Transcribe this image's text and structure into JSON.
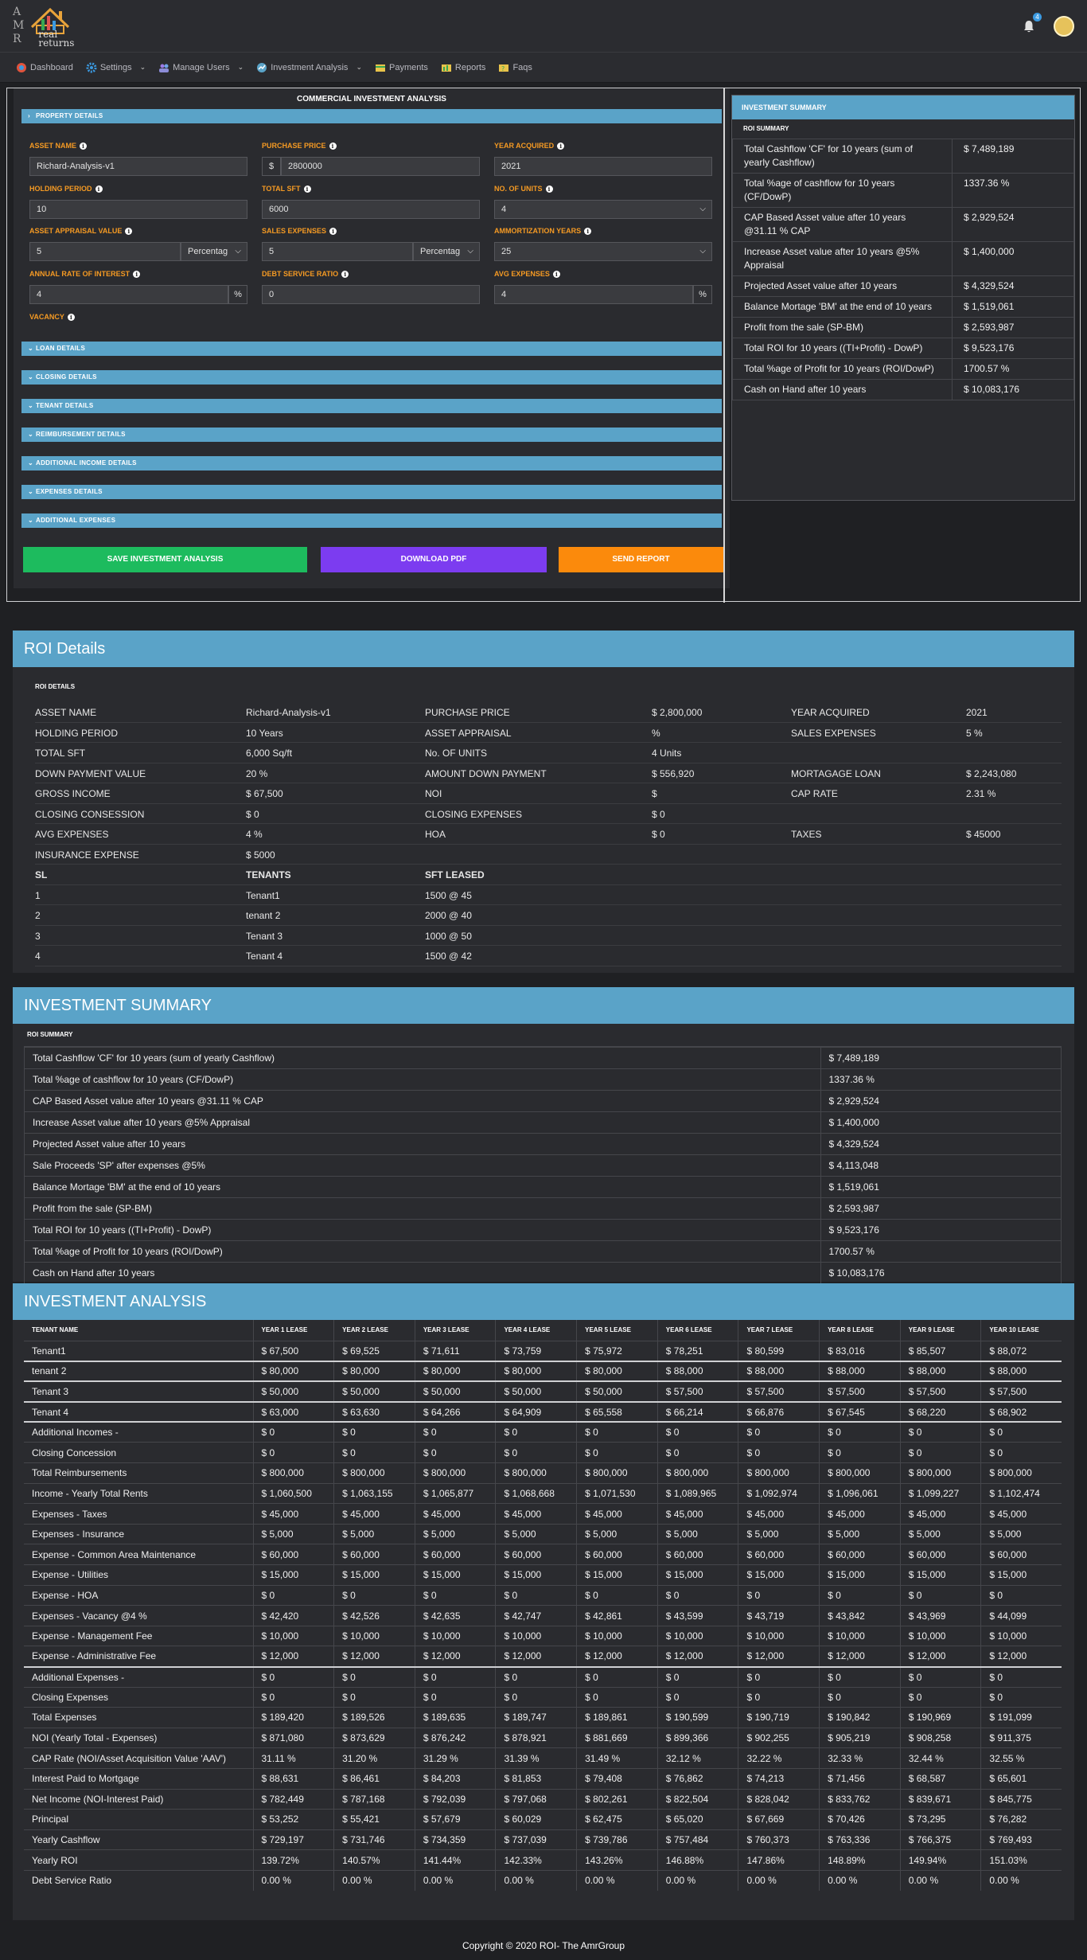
{
  "brand": {
    "letters": [
      "A",
      "M",
      "R"
    ],
    "name_line1": "real",
    "name_line2": "returns"
  },
  "notifications": {
    "count": "4"
  },
  "nav": [
    {
      "label": "Dashboard",
      "icon": "dashboard-icon",
      "dropdown": false
    },
    {
      "label": "Settings",
      "icon": "gear-icon",
      "dropdown": true
    },
    {
      "label": "Manage Users",
      "icon": "users-icon",
      "dropdown": true
    },
    {
      "label": "Investment Analysis",
      "icon": "analysis-icon",
      "dropdown": true
    },
    {
      "label": "Payments",
      "icon": "payments-icon",
      "dropdown": false
    },
    {
      "label": "Reports",
      "icon": "reports-icon",
      "dropdown": false
    },
    {
      "label": "Faqs",
      "icon": "faqs-icon",
      "dropdown": false
    }
  ],
  "form": {
    "title": "COMMERCIAL INVESTMENT ANALYSIS",
    "property_details": "PROPERTY DETAILS",
    "asset_name": {
      "label": "ASSET NAME",
      "value": "Richard-Analysis-v1"
    },
    "purchase_price": {
      "label": "PURCHASE PRICE",
      "prefix": "$",
      "value": "2800000"
    },
    "year_acquired": {
      "label": "YEAR ACQUIRED",
      "value": "2021"
    },
    "holding_period": {
      "label": "HOLDING PERIOD",
      "value": "10"
    },
    "total_sft": {
      "label": "TOTAL SFT",
      "value": "6000"
    },
    "no_of_units": {
      "label": "NO. OF UNITS",
      "value": "4"
    },
    "asset_appraisal": {
      "label": "ASSET APPRAISAL VALUE",
      "value": "5",
      "unit": "Percentag"
    },
    "sales_expenses": {
      "label": "SALES EXPENSES",
      "value": "5",
      "unit": "Percentag"
    },
    "amortization": {
      "label": "AMMORTIZATION YEARS",
      "value": "25"
    },
    "interest_rate": {
      "label": "ANNUAL RATE OF INTEREST",
      "value": "4",
      "suffix": "%"
    },
    "debt_service": {
      "label": "DEBT SERVICE RATIO",
      "value": "0"
    },
    "avg_expenses": {
      "label": "AVG EXPENSES",
      "value": "4",
      "suffix": "%"
    },
    "vacancy": {
      "label": "VACANCY"
    },
    "sections": [
      "LOAN DETAILS",
      "CLOSING DETAILS",
      "TENANT DETAILS",
      "REIMBURSEMENT DETAILS",
      "ADDITIONAL INCOME DETAILS",
      "EXPENSES DETAILS",
      "ADDITIONAL EXPENSES"
    ],
    "buttons": {
      "save": "SAVE INVESTMENT ANALYSIS",
      "pdf": "DOWNLOAD PDF",
      "report": "SEND REPORT"
    }
  },
  "side_summary": {
    "header": "INVESTMENT SUMMARY",
    "sub": "ROI SUMMARY",
    "rows": [
      {
        "k": "Total Cashflow 'CF' for 10 years (sum of yearly Cashflow)",
        "v": "$ 7,489,189"
      },
      {
        "k": "Total %age of cashflow for 10 years (CF/DowP)",
        "v": "1337.36 %"
      },
      {
        "k": "CAP Based Asset value after 10 years @31.11 % CAP",
        "v": "$ 2,929,524"
      },
      {
        "k": "Increase Asset value after 10 years @5% Appraisal",
        "v": "$ 1,400,000"
      },
      {
        "k": "Projected Asset value after 10 years",
        "v": "$ 4,329,524"
      },
      {
        "k": "Balance Mortage 'BM' at the end of 10 years",
        "v": "$ 1,519,061"
      },
      {
        "k": "Profit from the sale (SP-BM)",
        "v": "$ 2,593,987"
      },
      {
        "k": "Total ROI for 10 years ((TI+Profit) - DowP)",
        "v": "$ 9,523,176"
      },
      {
        "k": "Total %age of Profit for 10 years (ROI/DowP)",
        "v": "1700.57 %"
      },
      {
        "k": "Cash on Hand after 10 years",
        "v": "$ 10,083,176"
      }
    ]
  },
  "roi_details": {
    "title": "ROI Details",
    "sub": "ROI DETAILS",
    "rows": [
      [
        "ASSET NAME",
        "Richard-Analysis-v1",
        "PURCHASE PRICE",
        "$ 2,800,000",
        "YEAR ACQUIRED",
        "2021"
      ],
      [
        "HOLDING PERIOD",
        "10 Years",
        "ASSET APPRAISAL",
        "%",
        "SALES EXPENSES",
        "5 %"
      ],
      [
        "TOTAL SFT",
        "6,000 Sq/ft",
        "No. OF UNITS",
        "4 Units",
        "",
        ""
      ],
      [
        "DOWN PAYMENT VALUE",
        "20 %",
        "AMOUNT DOWN PAYMENT",
        "$ 556,920",
        "MORTAGAGE LOAN",
        "$ 2,243,080"
      ],
      [
        "GROSS INCOME",
        "$ 67,500",
        "NOI",
        "$",
        "CAP RATE",
        "2.31 %"
      ],
      [
        "CLOSING CONSESSION",
        "$ 0",
        "CLOSING EXPENSES",
        "$ 0",
        "",
        ""
      ],
      [
        "AVG EXPENSES",
        "4 %",
        "HOA",
        "$ 0",
        "TAXES",
        "$ 45000"
      ],
      [
        "INSURANCE EXPENSE",
        "$ 5000",
        "",
        "",
        "",
        ""
      ]
    ],
    "tenant_headers": [
      "SL",
      "TENANTS",
      "SFT LEASED"
    ],
    "tenants": [
      [
        "1",
        "Tenant1",
        "1500 @ 45"
      ],
      [
        "2",
        "tenant 2",
        "2000 @ 40"
      ],
      [
        "3",
        "Tenant 3",
        "1000 @ 50"
      ],
      [
        "4",
        "Tenant 4",
        "1500 @ 42"
      ]
    ]
  },
  "investment_summary": {
    "title": "INVESTMENT SUMMARY",
    "sub": "ROI SUMMARY",
    "rows": [
      {
        "k": "Total Cashflow 'CF' for 10 years (sum of yearly Cashflow)",
        "v": "$ 7,489,189"
      },
      {
        "k": "Total %age of cashflow for 10 years (CF/DowP)",
        "v": "1337.36 %"
      },
      {
        "k": "CAP Based Asset value after 10 years @31.11 % CAP",
        "v": "$ 2,929,524"
      },
      {
        "k": "Increase Asset value after 10 years @5% Appraisal",
        "v": "$ 1,400,000"
      },
      {
        "k": "Projected Asset value after 10 years",
        "v": "$ 4,329,524"
      },
      {
        "k": "Sale Proceeds 'SP' after expenses @5%",
        "v": "$ 4,113,048"
      },
      {
        "k": "Balance Mortage 'BM' at the end of 10 years",
        "v": "$ 1,519,061"
      },
      {
        "k": "Profit from the sale (SP-BM)",
        "v": "$ 2,593,987"
      },
      {
        "k": "Total ROI for 10 years ((TI+Profit) - DowP)",
        "v": "$ 9,523,176"
      },
      {
        "k": "Total %age of Profit for 10 years (ROI/DowP)",
        "v": "1700.57 %"
      },
      {
        "k": "Cash on Hand after 10 years",
        "v": "$ 10,083,176"
      }
    ]
  },
  "investment_analysis": {
    "title": "INVESTMENT ANALYSIS",
    "headers": [
      "TENANT NAME",
      "YEAR 1 LEASE",
      "YEAR 2 LEASE",
      "YEAR 3 LEASE",
      "YEAR 4 LEASE",
      "YEAR 5 LEASE",
      "YEAR 6 LEASE",
      "YEAR 7 LEASE",
      "YEAR 8 LEASE",
      "YEAR 9 LEASE",
      "YEAR 10 LEASE"
    ],
    "rows": [
      [
        "Tenant1",
        "$ 67,500",
        "$ 69,525",
        "$ 71,611",
        "$ 73,759",
        "$ 75,972",
        "$ 78,251",
        "$ 80,599",
        "$ 83,016",
        "$ 85,507",
        "$ 88,072"
      ],
      [
        "tenant 2",
        "$ 80,000",
        "$ 80,000",
        "$ 80,000",
        "$ 80,000",
        "$ 80,000",
        "$ 88,000",
        "$ 88,000",
        "$ 88,000",
        "$ 88,000",
        "$ 88,000"
      ],
      [
        "Tenant 3",
        "$ 50,000",
        "$ 50,000",
        "$ 50,000",
        "$ 50,000",
        "$ 50,000",
        "$ 57,500",
        "$ 57,500",
        "$ 57,500",
        "$ 57,500",
        "$ 57,500"
      ],
      [
        "Tenant 4",
        "$ 63,000",
        "$ 63,630",
        "$ 64,266",
        "$ 64,909",
        "$ 65,558",
        "$ 66,214",
        "$ 66,876",
        "$ 67,545",
        "$ 68,220",
        "$ 68,902"
      ],
      [
        "Additional Incomes -",
        "$ 0",
        "$ 0",
        "$ 0",
        "$ 0",
        "$ 0",
        "$ 0",
        "$ 0",
        "$ 0",
        "$ 0",
        "$ 0"
      ],
      [
        "Closing Concession",
        "$ 0",
        "$ 0",
        "$ 0",
        "$ 0",
        "$ 0",
        "$ 0",
        "$ 0",
        "$ 0",
        "$ 0",
        "$ 0"
      ],
      [
        "Total Reimbursements",
        "$ 800,000",
        "$ 800,000",
        "$ 800,000",
        "$ 800,000",
        "$ 800,000",
        "$ 800,000",
        "$ 800,000",
        "$ 800,000",
        "$ 800,000",
        "$ 800,000"
      ],
      [
        "Income - Yearly Total Rents",
        "$ 1,060,500",
        "$ 1,063,155",
        "$ 1,065,877",
        "$ 1,068,668",
        "$ 1,071,530",
        "$ 1,089,965",
        "$ 1,092,974",
        "$ 1,096,061",
        "$ 1,099,227",
        "$ 1,102,474"
      ],
      [
        "Expenses - Taxes",
        "$ 45,000",
        "$ 45,000",
        "$ 45,000",
        "$ 45,000",
        "$ 45,000",
        "$ 45,000",
        "$ 45,000",
        "$ 45,000",
        "$ 45,000",
        "$ 45,000"
      ],
      [
        "Expenses - Insurance",
        "$ 5,000",
        "$ 5,000",
        "$ 5,000",
        "$ 5,000",
        "$ 5,000",
        "$ 5,000",
        "$ 5,000",
        "$ 5,000",
        "$ 5,000",
        "$ 5,000"
      ],
      [
        "Expense - Common Area Maintenance",
        "$ 60,000",
        "$ 60,000",
        "$ 60,000",
        "$ 60,000",
        "$ 60,000",
        "$ 60,000",
        "$ 60,000",
        "$ 60,000",
        "$ 60,000",
        "$ 60,000"
      ],
      [
        "Expense - Utilities",
        "$ 15,000",
        "$ 15,000",
        "$ 15,000",
        "$ 15,000",
        "$ 15,000",
        "$ 15,000",
        "$ 15,000",
        "$ 15,000",
        "$ 15,000",
        "$ 15,000"
      ],
      [
        "Expense - HOA",
        "$ 0",
        "$ 0",
        "$ 0",
        "$ 0",
        "$ 0",
        "$ 0",
        "$ 0",
        "$ 0",
        "$ 0",
        "$ 0"
      ],
      [
        "Expenses - Vacancy @4 %",
        "$ 42,420",
        "$ 42,526",
        "$ 42,635",
        "$ 42,747",
        "$ 42,861",
        "$ 43,599",
        "$ 43,719",
        "$ 43,842",
        "$ 43,969",
        "$ 44,099"
      ],
      [
        "Expense - Management Fee",
        "$ 10,000",
        "$ 10,000",
        "$ 10,000",
        "$ 10,000",
        "$ 10,000",
        "$ 10,000",
        "$ 10,000",
        "$ 10,000",
        "$ 10,000",
        "$ 10,000"
      ],
      [
        "Expense - Administrative Fee",
        "$ 12,000",
        "$ 12,000",
        "$ 12,000",
        "$ 12,000",
        "$ 12,000",
        "$ 12,000",
        "$ 12,000",
        "$ 12,000",
        "$ 12,000",
        "$ 12,000"
      ],
      [
        "Additional Expenses -",
        "$ 0",
        "$ 0",
        "$ 0",
        "$ 0",
        "$ 0",
        "$ 0",
        "$ 0",
        "$ 0",
        "$ 0",
        "$ 0"
      ],
      [
        "Closing Expenses",
        "$ 0",
        "$ 0",
        "$ 0",
        "$ 0",
        "$ 0",
        "$ 0",
        "$ 0",
        "$ 0",
        "$ 0",
        "$ 0"
      ],
      [
        "Total Expenses",
        "$ 189,420",
        "$ 189,526",
        "$ 189,635",
        "$ 189,747",
        "$ 189,861",
        "$ 190,599",
        "$ 190,719",
        "$ 190,842",
        "$ 190,969",
        "$ 191,099"
      ],
      [
        "NOI (Yearly Total - Expenses)",
        "$ 871,080",
        "$ 873,629",
        "$ 876,242",
        "$ 878,921",
        "$ 881,669",
        "$ 899,366",
        "$ 902,255",
        "$ 905,219",
        "$ 908,258",
        "$ 911,375"
      ],
      [
        "CAP Rate (NOI/Asset Acquisition Value 'AAV')",
        "31.11 %",
        "31.20 %",
        "31.29 %",
        "31.39 %",
        "31.49 %",
        "32.12 %",
        "32.22 %",
        "32.33 %",
        "32.44 %",
        "32.55 %"
      ],
      [
        "Interest Paid to Mortgage",
        "$ 88,631",
        "$ 86,461",
        "$ 84,203",
        "$ 81,853",
        "$ 79,408",
        "$ 76,862",
        "$ 74,213",
        "$ 71,456",
        "$ 68,587",
        "$ 65,601"
      ],
      [
        "Net Income (NOI-Interest Paid)",
        "$ 782,449",
        "$ 787,168",
        "$ 792,039",
        "$ 797,068",
        "$ 802,261",
        "$ 822,504",
        "$ 828,042",
        "$ 833,762",
        "$ 839,671",
        "$ 845,775"
      ],
      [
        "Principal",
        "$ 53,252",
        "$ 55,421",
        "$ 57,679",
        "$ 60,029",
        "$ 62,475",
        "$ 65,020",
        "$ 67,669",
        "$ 70,426",
        "$ 73,295",
        "$ 76,282"
      ],
      [
        "Yearly Cashflow",
        "$ 729,197",
        "$ 731,746",
        "$ 734,359",
        "$ 737,039",
        "$ 739,786",
        "$ 757,484",
        "$ 760,373",
        "$ 763,336",
        "$ 766,375",
        "$ 769,493"
      ],
      [
        "Yearly ROI",
        "139.72%",
        "140.57%",
        "141.44%",
        "142.33%",
        "143.26%",
        "146.88%",
        "147.86%",
        "148.89%",
        "149.94%",
        "151.03%"
      ],
      [
        "Debt Service Ratio",
        "0.00 %",
        "0.00 %",
        "0.00 %",
        "0.00 %",
        "0.00 %",
        "0.00 %",
        "0.00 %",
        "0.00 %",
        "0.00 %",
        "0.00 %"
      ]
    ],
    "thick_after": [
      0,
      1,
      2,
      3,
      15
    ]
  },
  "footer": "Copyright © 2020 ROI- The AmrGroup",
  "colors": {
    "accent": "#5aa3c8",
    "label": "#f59a23",
    "save": "#1dbb5e",
    "pdf": "#7c3cf0",
    "report": "#fb8a0c"
  }
}
